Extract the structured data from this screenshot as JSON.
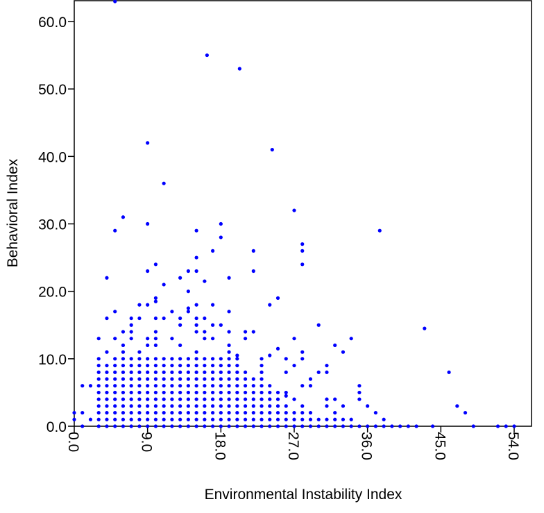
{
  "chart_data": {
    "type": "scatter",
    "title": "",
    "xlabel": "Environmental Instability Index",
    "ylabel": "Behavioral Index",
    "xlim": [
      0,
      56
    ],
    "ylim": [
      0,
      63
    ],
    "x_ticks": [
      0,
      9,
      18,
      27,
      36,
      45,
      54
    ],
    "x_tick_labels": [
      "0.0",
      "9.0",
      "18.0",
      "27.0",
      "36.0",
      "45.0",
      "54.0"
    ],
    "y_ticks": [
      0,
      10,
      20,
      30,
      40,
      50,
      60
    ],
    "y_tick_labels": [
      "0.0",
      "10.0",
      "20.0",
      "30.0",
      "40.0",
      "50.0",
      "60.0"
    ],
    "grid": false,
    "legend": "none",
    "marker_color": "#0000ff",
    "points": [
      [
        5,
        63
      ],
      [
        16.3,
        55
      ],
      [
        20.3,
        53
      ],
      [
        9,
        42
      ],
      [
        24.3,
        41
      ],
      [
        11,
        36
      ],
      [
        6,
        31
      ],
      [
        5,
        29
      ],
      [
        9,
        30
      ],
      [
        15,
        29
      ],
      [
        27,
        32
      ],
      [
        37.5,
        29
      ],
      [
        18,
        30
      ],
      [
        18,
        28
      ],
      [
        17,
        26
      ],
      [
        15,
        25
      ],
      [
        22,
        26
      ],
      [
        28,
        27
      ],
      [
        28,
        26
      ],
      [
        28,
        24
      ],
      [
        10,
        24
      ],
      [
        9,
        23
      ],
      [
        14,
        23
      ],
      [
        15,
        23
      ],
      [
        22,
        23
      ],
      [
        4,
        22
      ],
      [
        13,
        22
      ],
      [
        19,
        22
      ],
      [
        16,
        21.5
      ],
      [
        11,
        21
      ],
      [
        14,
        20
      ],
      [
        25,
        19
      ],
      [
        10,
        19
      ],
      [
        10,
        18.5
      ],
      [
        9,
        18
      ],
      [
        8,
        18
      ],
      [
        24,
        18
      ],
      [
        17,
        18
      ],
      [
        15,
        18
      ],
      [
        4,
        16
      ],
      [
        7,
        16
      ],
      [
        8,
        16
      ],
      [
        10,
        16
      ],
      [
        11,
        16
      ],
      [
        13,
        16
      ],
      [
        5,
        17
      ],
      [
        12,
        17
      ],
      [
        14,
        17
      ],
      [
        19,
        17
      ],
      [
        14,
        17.5
      ],
      [
        15,
        16
      ],
      [
        16,
        16
      ],
      [
        7,
        15
      ],
      [
        13,
        15
      ],
      [
        15,
        15
      ],
      [
        17,
        15
      ],
      [
        18,
        15
      ],
      [
        30,
        15
      ],
      [
        43,
        14.5
      ],
      [
        6,
        14
      ],
      [
        7,
        14
      ],
      [
        10,
        14
      ],
      [
        15,
        14
      ],
      [
        16,
        14
      ],
      [
        19,
        14
      ],
      [
        21,
        14
      ],
      [
        22,
        14
      ],
      [
        3,
        13
      ],
      [
        5,
        13
      ],
      [
        7,
        13
      ],
      [
        9,
        13
      ],
      [
        10,
        13
      ],
      [
        12,
        13
      ],
      [
        16,
        13
      ],
      [
        17,
        13
      ],
      [
        21,
        13
      ],
      [
        27,
        13
      ],
      [
        34,
        13
      ],
      [
        6,
        12
      ],
      [
        9,
        12
      ],
      [
        10,
        12
      ],
      [
        13,
        12
      ],
      [
        19,
        12
      ],
      [
        32,
        12
      ],
      [
        25,
        11.5
      ],
      [
        4,
        11
      ],
      [
        6,
        11
      ],
      [
        8,
        11
      ],
      [
        15,
        11
      ],
      [
        19,
        11
      ],
      [
        28,
        11
      ],
      [
        33,
        11
      ],
      [
        20,
        10.5
      ],
      [
        24,
        10.5
      ],
      [
        20,
        10
      ],
      [
        23,
        10
      ],
      [
        26,
        10
      ],
      [
        28,
        10
      ],
      [
        46,
        8
      ],
      [
        3,
        9
      ],
      [
        4,
        9
      ],
      [
        5,
        9
      ],
      [
        14,
        9
      ],
      [
        16,
        9
      ],
      [
        23,
        9
      ],
      [
        27,
        9
      ],
      [
        31,
        9
      ],
      [
        30,
        8
      ],
      [
        31,
        8
      ],
      [
        23,
        8
      ],
      [
        26,
        8
      ],
      [
        35,
        6
      ],
      [
        29,
        7
      ],
      [
        35,
        5
      ],
      [
        35,
        4
      ],
      [
        28,
        6
      ],
      [
        29,
        6
      ],
      [
        26,
        5
      ],
      [
        26,
        4.5
      ],
      [
        27,
        4
      ],
      [
        32,
        4
      ],
      [
        31,
        4
      ],
      [
        31,
        3
      ],
      [
        33,
        3
      ],
      [
        36,
        3
      ],
      [
        47,
        3
      ],
      [
        48,
        2
      ],
      [
        37,
        2
      ],
      [
        32,
        2
      ],
      [
        33,
        1
      ],
      [
        38,
        1
      ],
      [
        0,
        2
      ],
      [
        1,
        6
      ],
      [
        2,
        6
      ],
      [
        1,
        2
      ],
      [
        2,
        1
      ],
      [
        0,
        1
      ],
      [
        1,
        0
      ],
      [
        40,
        0
      ],
      [
        41,
        0
      ],
      [
        42,
        0
      ],
      [
        44,
        0
      ],
      [
        49,
        0
      ],
      [
        52,
        0
      ],
      [
        53,
        0
      ],
      [
        54,
        0
      ]
    ],
    "grid_fill": {
      "y_values": [
        0,
        1,
        2,
        3,
        4,
        5,
        6,
        7,
        8,
        9,
        10
      ],
      "columns": [
        [
          3,
          [
            0,
            10
          ]
        ],
        [
          4,
          [
            0,
            9
          ]
        ],
        [
          5,
          [
            0,
            10
          ]
        ],
        [
          6,
          [
            0,
            10
          ]
        ],
        [
          7,
          [
            0,
            10
          ]
        ],
        [
          8,
          [
            0,
            10
          ]
        ],
        [
          9,
          [
            0,
            10
          ]
        ],
        [
          10,
          [
            0,
            10
          ]
        ],
        [
          11,
          [
            0,
            10
          ]
        ],
        [
          12,
          [
            0,
            10
          ]
        ],
        [
          13,
          [
            0,
            10
          ]
        ],
        [
          14,
          [
            0,
            10
          ]
        ],
        [
          15,
          [
            0,
            10
          ]
        ],
        [
          16,
          [
            0,
            10
          ]
        ],
        [
          17,
          [
            0,
            10
          ]
        ],
        [
          18,
          [
            0,
            10
          ]
        ],
        [
          19,
          [
            0,
            10
          ]
        ],
        [
          20,
          [
            0,
            9
          ]
        ],
        [
          21,
          [
            0,
            8
          ]
        ],
        [
          22,
          [
            0,
            7
          ]
        ],
        [
          23,
          [
            0,
            7
          ]
        ],
        [
          24,
          [
            0,
            6
          ]
        ],
        [
          25,
          [
            0,
            5
          ]
        ],
        [
          26,
          [
            0,
            3
          ]
        ],
        [
          27,
          [
            0,
            2
          ]
        ],
        [
          28,
          [
            0,
            3
          ]
        ],
        [
          29,
          [
            0,
            2
          ]
        ],
        [
          30,
          [
            0,
            1
          ]
        ],
        [
          31,
          [
            0,
            1
          ]
        ],
        [
          32,
          [
            0,
            1
          ]
        ],
        [
          33,
          [
            0,
            0
          ]
        ],
        [
          34,
          [
            0,
            1
          ]
        ],
        [
          35,
          [
            0,
            0
          ]
        ],
        [
          36,
          [
            0,
            0
          ]
        ],
        [
          37,
          [
            0,
            0
          ]
        ],
        [
          38,
          [
            0,
            0
          ]
        ],
        [
          39,
          [
            0,
            0
          ]
        ]
      ]
    }
  }
}
